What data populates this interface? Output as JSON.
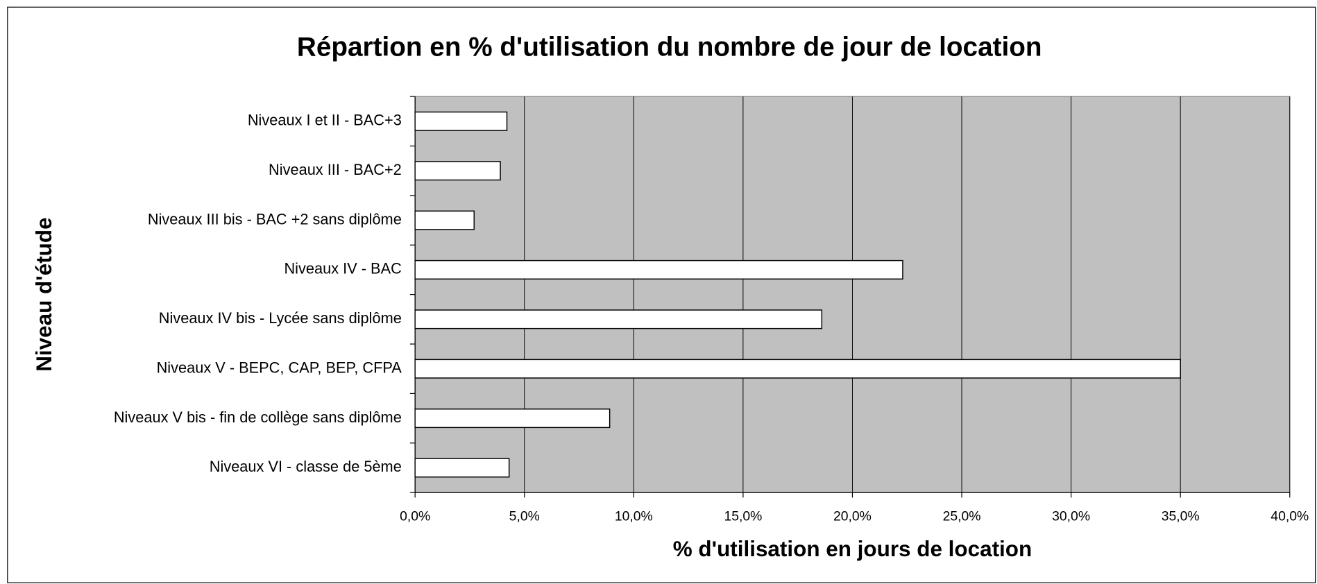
{
  "chart_data": {
    "type": "bar",
    "orientation": "horizontal",
    "title": "Répartion en % d'utilisation du nombre de jour de location",
    "xlabel": "% d'utilisation en jours de location",
    "ylabel": "Niveau d'étude",
    "categories": [
      "Niveaux I et II - BAC+3",
      "Niveaux III - BAC+2",
      "Niveaux III bis - BAC +2 sans diplôme",
      "Niveaux IV - BAC",
      "Niveaux IV bis - Lycée sans diplôme",
      "Niveaux V - BEPC, CAP, BEP, CFPA",
      "Niveaux V bis - fin de collège sans diplôme",
      "Niveaux VI - classe de 5ème"
    ],
    "values": [
      4.2,
      3.9,
      2.7,
      22.3,
      18.6,
      35.0,
      8.9,
      4.3
    ],
    "color": "#ffffff",
    "xlim": [
      0,
      40
    ],
    "xticks": [
      {
        "value": 0,
        "label": "0,0%"
      },
      {
        "value": 5,
        "label": "5,0%"
      },
      {
        "value": 10,
        "label": "10,0%"
      },
      {
        "value": 15,
        "label": "15,0%"
      },
      {
        "value": 20,
        "label": "20,0%"
      },
      {
        "value": 25,
        "label": "25,0%"
      },
      {
        "value": 30,
        "label": "30,0%"
      },
      {
        "value": 35,
        "label": "35,0%"
      },
      {
        "value": 40,
        "label": "40,0%"
      }
    ],
    "grid": true
  }
}
